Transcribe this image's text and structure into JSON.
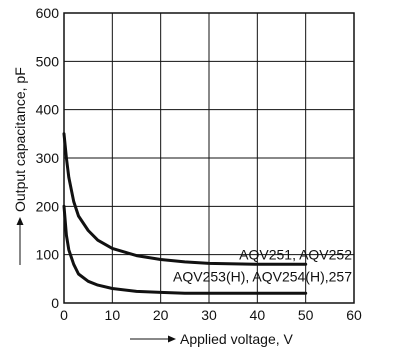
{
  "chart_data": {
    "type": "line",
    "title": "",
    "xlabel": "Applied voltage, V",
    "ylabel": "Output capacitance, pF",
    "xlim": [
      0,
      60
    ],
    "ylim": [
      0,
      600
    ],
    "x_ticks": [
      "0",
      "10",
      "20",
      "30",
      "40",
      "50",
      "60"
    ],
    "y_ticks": [
      "0",
      "100",
      "200",
      "300",
      "400",
      "500",
      "600"
    ],
    "grid": true,
    "legend": "none",
    "series": [
      {
        "name": "AQV251, AQV252",
        "x": [
          0,
          0.5,
          1,
          2,
          3,
          5,
          7,
          10,
          15,
          20,
          25,
          30,
          40,
          50
        ],
        "y": [
          350,
          300,
          260,
          210,
          180,
          150,
          130,
          113,
          98,
          90,
          85,
          82,
          80,
          80
        ]
      },
      {
        "name": "AQV253(H), AQV254(H),257",
        "x": [
          0,
          0.5,
          1,
          2,
          3,
          5,
          7,
          10,
          15,
          20,
          25,
          30,
          40,
          50
        ],
        "y": [
          200,
          140,
          110,
          80,
          60,
          45,
          37,
          30,
          24,
          22,
          20,
          20,
          20,
          20
        ]
      }
    ],
    "colors": {
      "line": "#111111",
      "grid": "#111111",
      "background": "#ffffff"
    }
  }
}
